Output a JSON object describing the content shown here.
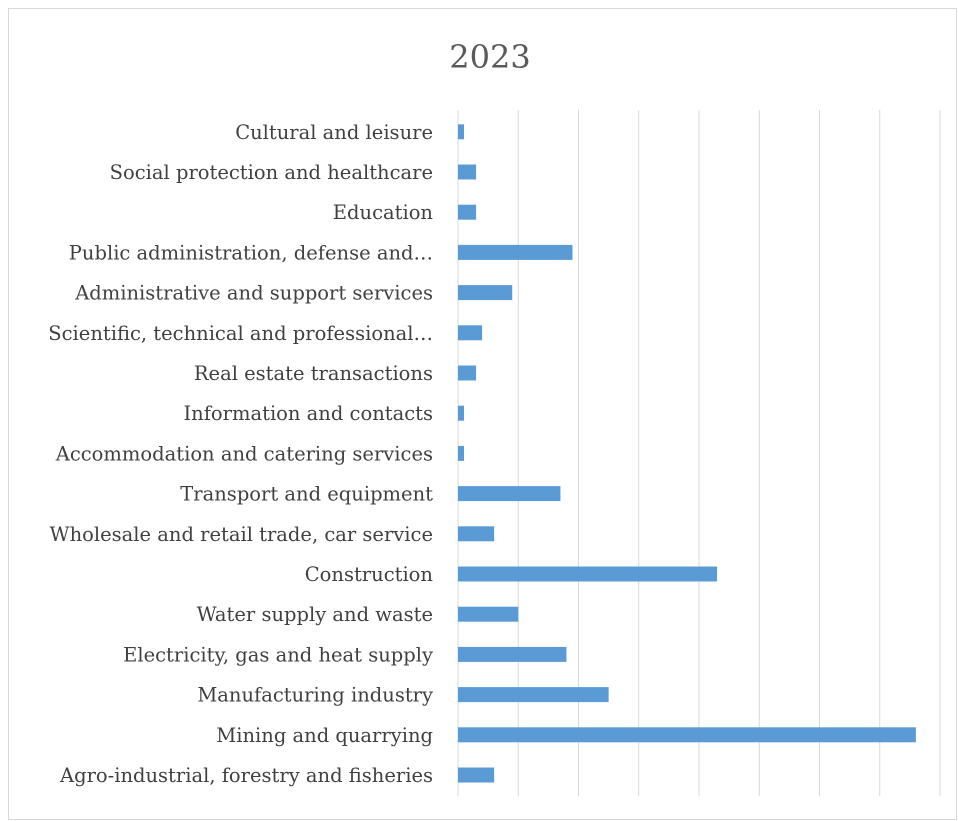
{
  "chart_data": {
    "type": "bar",
    "orientation": "horizontal",
    "title": "2023",
    "categories": [
      "Agro-industrial, forestry and fisheries",
      "Mining and quarrying",
      "Manufacturing industry",
      "Electricity, gas and heat supply",
      "Water supply and waste",
      "Construction",
      "Wholesale and retail trade, car service",
      "Transport and equipment",
      "Accommodation and catering services",
      "Information and contacts",
      "Real estate transactions",
      "Scientific, technical and professional…",
      "Administrative and support services",
      "Public administration, defense and…",
      "Education",
      "Social protection and healthcare",
      "Cultural and leisure"
    ],
    "values": [
      0.6,
      7.6,
      2.5,
      1.8,
      1.0,
      4.3,
      0.6,
      1.7,
      0.1,
      0.1,
      0.3,
      0.4,
      0.9,
      1.9,
      0.3,
      0.3,
      0.1
    ],
    "xlim": [
      0,
      8
    ],
    "grid": true,
    "legend": "none",
    "bar_color": "#5b9bd5",
    "gridline_color": "#d9d9d9"
  }
}
